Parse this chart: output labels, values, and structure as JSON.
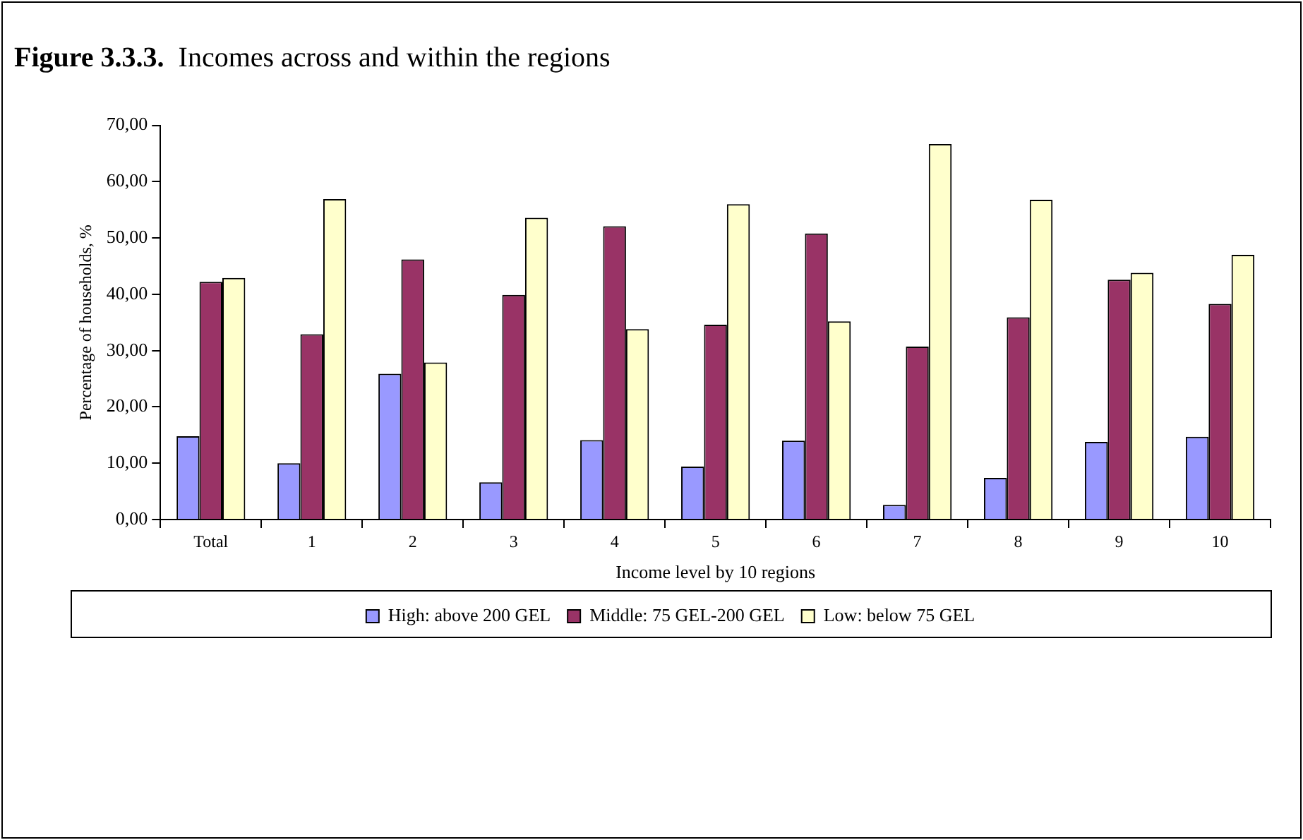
{
  "chart_data": {
    "type": "bar",
    "title": "Figure 3.3.3.  Incomes across and within the regions",
    "xlabel": "Income level by 10 regions",
    "ylabel": "Percentage of households, %",
    "categories": [
      "Total",
      "1",
      "2",
      "3",
      "4",
      "5",
      "6",
      "7",
      "8",
      "9",
      "10"
    ],
    "series": [
      {
        "name": "High: above 200 GEL",
        "color": "#9999ff",
        "values": [
          14.8,
          10.0,
          25.9,
          6.6,
          14.1,
          9.4,
          14.0,
          2.6,
          7.4,
          13.8,
          14.7
        ]
      },
      {
        "name": "Middle: 75 GEL-200 GEL",
        "color": "#993366",
        "values": [
          42.2,
          32.9,
          46.2,
          39.9,
          52.1,
          34.6,
          50.8,
          30.7,
          35.9,
          42.6,
          38.3
        ]
      },
      {
        "name": "Low: below 75 GEL",
        "color": "#ffffcc",
        "values": [
          42.9,
          56.9,
          27.9,
          53.6,
          33.8,
          56.0,
          35.2,
          66.7,
          56.8,
          43.8,
          47.0
        ]
      }
    ],
    "ylim": [
      0,
      70
    ],
    "yticks": [
      {
        "value": 0,
        "label": "0,00"
      },
      {
        "value": 10,
        "label": "10,00"
      },
      {
        "value": 20,
        "label": "20,00"
      },
      {
        "value": 30,
        "label": "30,00"
      },
      {
        "value": 40,
        "label": "40,00"
      },
      {
        "value": 50,
        "label": "50,00"
      },
      {
        "value": 60,
        "label": "60,00"
      },
      {
        "value": 70,
        "label": "70,00"
      }
    ],
    "grid": false,
    "legend": "bottom"
  }
}
